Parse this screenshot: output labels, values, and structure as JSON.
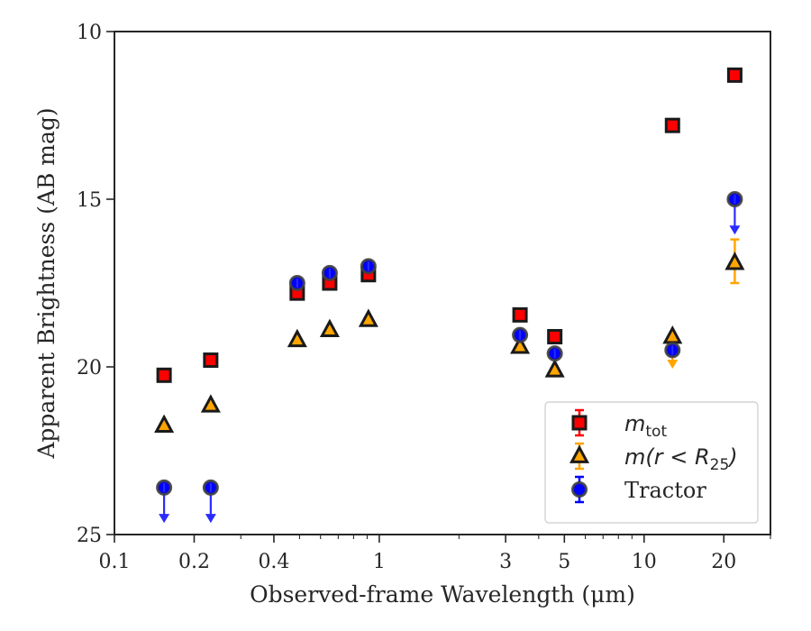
{
  "chart_data": {
    "type": "scatter",
    "xlabel": "Observed-frame Wavelength (μm)",
    "ylabel": "Apparent Brightness (AB mag)",
    "x_scale": "log",
    "xlim": [
      0.1,
      30
    ],
    "ylim": [
      25,
      10
    ],
    "y_inverted": true,
    "grid": false,
    "legend_position": "lower-right",
    "x_ticks": [
      {
        "value": 0.1,
        "label": "0.1"
      },
      {
        "value": 0.2,
        "label": "0.2"
      },
      {
        "value": 0.4,
        "label": "0.4"
      },
      {
        "value": 1,
        "label": "1"
      },
      {
        "value": 3,
        "label": "3"
      },
      {
        "value": 5,
        "label": "5"
      },
      {
        "value": 10,
        "label": "10"
      },
      {
        "value": 20,
        "label": "20"
      }
    ],
    "y_ticks": [
      {
        "value": 10,
        "label": "10"
      },
      {
        "value": 15,
        "label": "15"
      },
      {
        "value": 20,
        "label": "20"
      },
      {
        "value": 25,
        "label": "25"
      }
    ],
    "series": [
      {
        "name": "m_tot",
        "legend_main": "m",
        "legend_sub": "tot",
        "legend_rest": "",
        "marker": "square",
        "color": "#ff0000",
        "edge_color": "#1a1a1a",
        "points": [
          {
            "x": 0.154,
            "y": 20.25
          },
          {
            "x": 0.231,
            "y": 19.8
          },
          {
            "x": 0.49,
            "y": 17.8
          },
          {
            "x": 0.65,
            "y": 17.5
          },
          {
            "x": 0.91,
            "y": 17.25
          },
          {
            "x": 3.4,
            "y": 18.45
          },
          {
            "x": 4.6,
            "y": 19.1
          },
          {
            "x": 12.8,
            "y": 12.8
          },
          {
            "x": 22.0,
            "y": 11.3
          }
        ]
      },
      {
        "name": "m(r < R_25)",
        "legend_main": "m(r < R",
        "legend_sub": "25",
        "legend_rest": ")",
        "marker": "triangle",
        "color": "#ffa500",
        "edge_color": "#1a1a1a",
        "points": [
          {
            "x": 0.154,
            "y": 21.75
          },
          {
            "x": 0.231,
            "y": 21.15
          },
          {
            "x": 0.49,
            "y": 19.2
          },
          {
            "x": 0.65,
            "y": 18.9
          },
          {
            "x": 0.91,
            "y": 18.6
          },
          {
            "x": 3.4,
            "y": 19.4
          },
          {
            "x": 4.6,
            "y": 20.1
          },
          {
            "x": 12.8,
            "y": 19.1,
            "upper_limit_to": 20.0
          },
          {
            "x": 22.0,
            "y": 16.9,
            "err_low": 16.2,
            "err_high": 17.5
          }
        ]
      },
      {
        "name": "Tractor",
        "legend_main": "Tractor",
        "legend_sub": "",
        "legend_rest": "",
        "marker": "circle",
        "color": "#0000ff",
        "edge_color": "#404040",
        "arrow_color": "#2b2bff",
        "points": [
          {
            "x": 0.154,
            "y": 23.6,
            "upper_limit_to": 24.6
          },
          {
            "x": 0.231,
            "y": 23.6,
            "upper_limit_to": 24.6
          },
          {
            "x": 0.49,
            "y": 17.5
          },
          {
            "x": 0.65,
            "y": 17.2
          },
          {
            "x": 0.91,
            "y": 17.0
          },
          {
            "x": 3.4,
            "y": 19.05
          },
          {
            "x": 4.6,
            "y": 19.6
          },
          {
            "x": 12.8,
            "y": 19.5
          },
          {
            "x": 22.0,
            "y": 15.0,
            "upper_limit_to": 16.0
          }
        ]
      }
    ]
  }
}
